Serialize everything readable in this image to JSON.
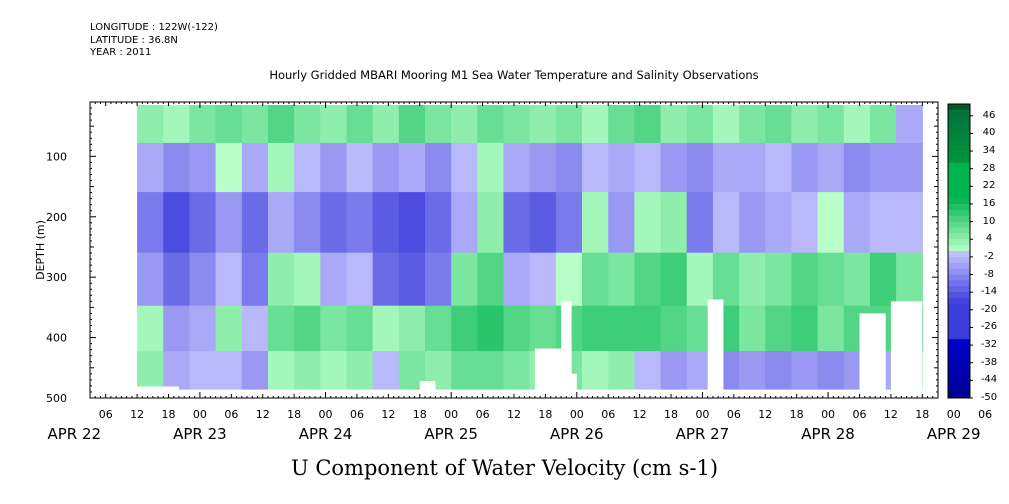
{
  "meta": {
    "longitude": "LONGITUDE : 122W(-122)",
    "latitude": "LATITUDE : 36.8N",
    "year": "YEAR : 2011"
  },
  "chart_title": "Hourly Gridded MBARI Mooring M1 Sea Water Temperature and Salinity Observations",
  "bottom_title": "U Component of Water Velocity (cm s-1)",
  "chart_data": {
    "type": "heatmap",
    "title": "Hourly Gridded MBARI Mooring M1 Sea Water Temperature and Salinity Observations",
    "xlabel": "",
    "ylabel": "DEPTH (m)",
    "variable": "U Component of Water Velocity (cm s-1)",
    "x_range_hours_from_apr22_00": [
      3,
      165
    ],
    "data_start_hour": 12,
    "data_end_hour": 162,
    "ylim": [
      500,
      10
    ],
    "y_inverted": true,
    "yticks": [
      100,
      200,
      300,
      400,
      500
    ],
    "hour_tick_labels": [
      "06",
      "12",
      "18",
      "00",
      "06",
      "12",
      "18",
      "00",
      "06",
      "12",
      "18",
      "00",
      "06",
      "12",
      "18",
      "00",
      "06",
      "12",
      "18",
      "00",
      "06",
      "12",
      "18",
      "00",
      "06",
      "12",
      "18",
      "00",
      "06",
      "12",
      "18",
      "00",
      "06"
    ],
    "day_labels": [
      "APR 22",
      "APR 23",
      "APR 24",
      "APR 25",
      "APR 26",
      "APR 27",
      "APR 28",
      "APR 29"
    ],
    "colorbar": {
      "min": -50,
      "max": 50,
      "label_values": [
        46,
        40,
        34,
        28,
        22,
        16,
        10,
        4,
        -2,
        -8,
        -14,
        -20,
        -26,
        -32,
        -38,
        -44,
        -50
      ],
      "neg_color": "#3c3cdc",
      "pos_color": "#00b450",
      "top_color": "#005a28",
      "bottom_color": "#00008c"
    },
    "band_weights": [
      1,
      1.3,
      1.6,
      1.4,
      1.2,
      1
    ],
    "band_profiles_cm_s": [
      [
        4,
        -4,
        -10,
        -6,
        2,
        4
      ],
      [
        2,
        -8,
        -16,
        -12,
        -6,
        -4
      ],
      [
        6,
        -6,
        -12,
        -8,
        -4,
        -2
      ],
      [
        8,
        0,
        -6,
        -2,
        4,
        -2
      ],
      [
        6,
        -4,
        -12,
        -10,
        -2,
        -6
      ],
      [
        10,
        2,
        -4,
        4,
        8,
        2
      ],
      [
        6,
        -2,
        -8,
        2,
        10,
        4
      ],
      [
        4,
        -6,
        -12,
        -4,
        6,
        2
      ],
      [
        8,
        -2,
        -10,
        -2,
        8,
        4
      ],
      [
        4,
        -6,
        -14,
        -12,
        2,
        -2
      ],
      [
        10,
        -4,
        -16,
        -14,
        4,
        6
      ],
      [
        6,
        -8,
        -12,
        -10,
        8,
        4
      ],
      [
        4,
        -2,
        -4,
        6,
        12,
        8
      ],
      [
        8,
        2,
        4,
        10,
        14,
        8
      ],
      [
        6,
        -4,
        -12,
        -4,
        10,
        6
      ],
      [
        4,
        -6,
        -14,
        -2,
        8,
        4
      ],
      [
        6,
        -8,
        -10,
        0,
        10,
        6
      ],
      [
        2,
        -2,
        2,
        8,
        12,
        2
      ],
      [
        8,
        -4,
        -6,
        6,
        12,
        4
      ],
      [
        10,
        -2,
        2,
        10,
        12,
        -2
      ],
      [
        4,
        -6,
        4,
        12,
        10,
        -6
      ],
      [
        6,
        -8,
        -10,
        2,
        8,
        -4
      ],
      [
        2,
        -4,
        -2,
        8,
        12,
        -8
      ],
      [
        6,
        -4,
        -6,
        4,
        6,
        -6
      ],
      [
        8,
        -2,
        -4,
        6,
        10,
        -8
      ],
      [
        4,
        -6,
        -2,
        10,
        12,
        -6
      ],
      [
        6,
        -4,
        0,
        8,
        6,
        -8
      ],
      [
        2,
        -8,
        -4,
        6,
        10,
        -6
      ],
      [
        6,
        -6,
        -2,
        12,
        10,
        -4
      ],
      [
        -4,
        -6,
        -2,
        6,
        12,
        2
      ]
    ],
    "missing_regions": [
      {
        "hour_start": 12,
        "hour_end": 20,
        "depth_start": 481,
        "depth_end": 500
      },
      {
        "hour_start": 66,
        "hour_end": 69,
        "depth_start": 472,
        "depth_end": 500
      },
      {
        "hour_start": 88,
        "hour_end": 95,
        "depth_start": 418,
        "depth_end": 500
      },
      {
        "hour_start": 93,
        "hour_end": 95,
        "depth_start": 340,
        "depth_end": 500
      },
      {
        "hour_start": 95,
        "hour_end": 96,
        "depth_start": 460,
        "depth_end": 500
      },
      {
        "hour_start": 121,
        "hour_end": 124,
        "depth_start": 337,
        "depth_end": 500
      },
      {
        "hour_start": 150,
        "hour_end": 155,
        "depth_start": 360,
        "depth_end": 500
      },
      {
        "hour_start": 156,
        "hour_end": 162,
        "depth_start": 340,
        "depth_end": 500
      },
      {
        "hour_start": 171,
        "hour_end": 174,
        "depth_start": 418,
        "depth_end": 500
      },
      {
        "hour_start": 178,
        "hour_end": 179,
        "depth_start": 465,
        "depth_end": 500
      },
      {
        "hour_start": 191,
        "hour_end": 193,
        "depth_start": 408,
        "depth_end": 500
      },
      {
        "hour_start": 196,
        "hour_end": 198,
        "depth_start": 460,
        "depth_end": 500
      }
    ]
  }
}
